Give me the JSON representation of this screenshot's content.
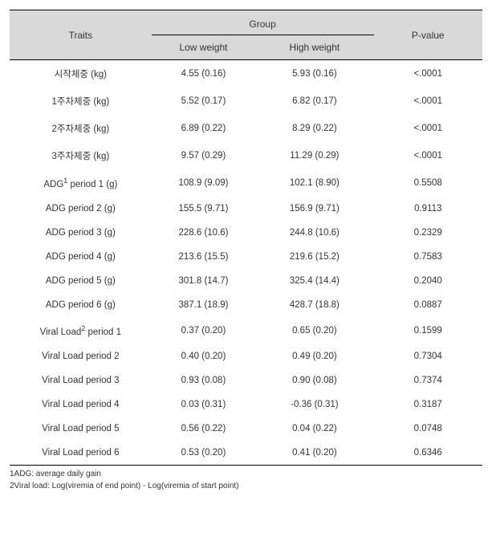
{
  "table": {
    "header": {
      "traits_label": "Traits",
      "group_label": "Group",
      "low_label": "Low weight",
      "high_label": "High weight",
      "pvalue_label": "P-value"
    },
    "columns": {
      "trait_width": "30%",
      "low_width": "22%",
      "high_width": "25%",
      "pval_width": "23%"
    },
    "rows": [
      {
        "trait": "시작체중 (kg)",
        "low": "4.55 (0.16)",
        "high": "5.93 (0.16)",
        "pvalue": "<.0001",
        "sup": ""
      },
      {
        "trait": "1주차체중 (kg)",
        "low": "5.52 (0.17)",
        "high": "6.82 (0.17)",
        "pvalue": "<.0001",
        "sup": ""
      },
      {
        "trait": "2주차체중 (kg)",
        "low": "6.89 (0.22)",
        "high": "8.29 (0.22)",
        "pvalue": "<.0001",
        "sup": ""
      },
      {
        "trait": "3주차체중 (kg)",
        "low": "9.57 (0.29)",
        "high": "11.29 (0.29)",
        "pvalue": "<.0001",
        "sup": ""
      },
      {
        "trait": "ADG",
        "trait_after": " period 1 (g)",
        "sup": "1",
        "low": "108.9 (9.09)",
        "high": "102.1 (8.90)",
        "pvalue": "0.5508"
      },
      {
        "trait": "ADG period 2 (g)",
        "low": "155.5 (9.71)",
        "high": "156.9 (9.71)",
        "pvalue": "0.9113",
        "sup": ""
      },
      {
        "trait": "ADG period 3 (g)",
        "low": "228.6 (10.6)",
        "high": "244.8 (10.6)",
        "pvalue": "0.2329",
        "sup": ""
      },
      {
        "trait": "ADG period 4 (g)",
        "low": "213.6 (15.5)",
        "high": "219.6 (15.2)",
        "pvalue": "0.7583",
        "sup": ""
      },
      {
        "trait": "ADG period 5 (g)",
        "low": "301.8 (14.7)",
        "high": "325.4 (14.4)",
        "pvalue": "0.2040",
        "sup": ""
      },
      {
        "trait": "ADG period 6 (g)",
        "low": "387.1 (18.9)",
        "high": "428.7 (18.8)",
        "pvalue": "0.0887",
        "sup": ""
      },
      {
        "trait": "Viral Load",
        "trait_after": " period 1",
        "sup": "2",
        "low": "0.37 (0.20)",
        "high": "0.65 (0.20)",
        "pvalue": "0.1599"
      },
      {
        "trait": "Viral Load period 2",
        "low": "0.40 (0.20)",
        "high": "0.49 (0.20)",
        "pvalue": "0.7304",
        "sup": ""
      },
      {
        "trait": "Viral Load period 3",
        "low": "0.93 (0.08)",
        "high": "0.90 (0.08)",
        "pvalue": "0.7374",
        "sup": ""
      },
      {
        "trait": "Viral Load period 4",
        "low": "0.03 (0.31)",
        "high": "-0.36 (0.31)",
        "pvalue": "0.3187",
        "sup": ""
      },
      {
        "trait": "Viral Load period 5",
        "low": "0.56 (0.22)",
        "high": "0.04 (0.22)",
        "pvalue": "0.0748",
        "sup": ""
      },
      {
        "trait": "Viral Load period 6",
        "low": "0.53 (0.20)",
        "high": "0.41 (0.20)",
        "pvalue": "0.6346",
        "sup": ""
      }
    ]
  },
  "footnotes": [
    "1ADG: average daily gain",
    "2Viral load: Log(viremia of end point) - Log(viremia of start point)"
  ],
  "styling": {
    "header_bg": "#d9d9d9",
    "border_color": "#000000",
    "font_size_body": 11.5,
    "font_size_header": 12,
    "font_size_footnote": 10,
    "text_color": "#333333",
    "background_color": "#ffffff"
  }
}
